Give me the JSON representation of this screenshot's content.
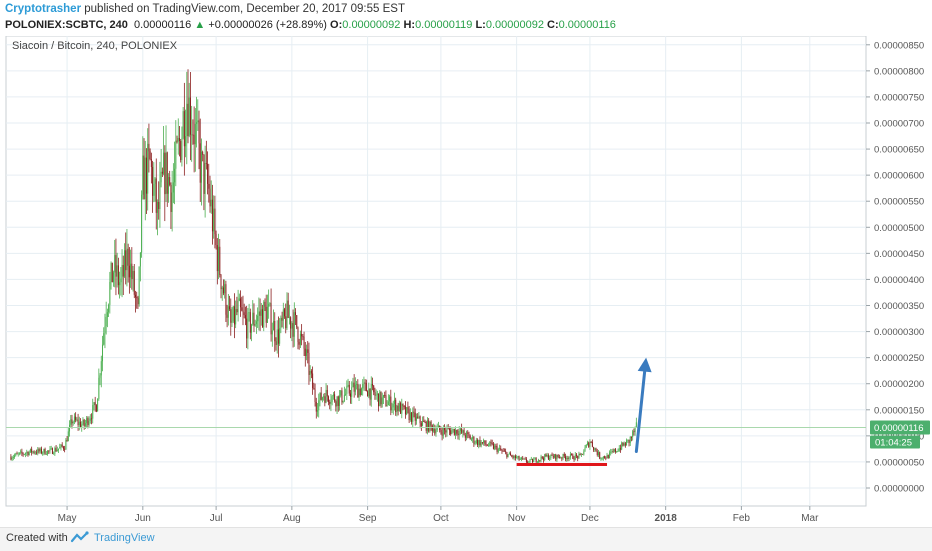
{
  "header": {
    "author": "Cryptotrasher",
    "published": " published on TradingView.com, December 20, 2017 09:55 EST",
    "symbol": "POLONIEX:SCBTC, 240",
    "last": "0.00000116",
    "change": "+0.00000026 (+28.89%)",
    "o_label": "O:",
    "o_value": "0.00000092",
    "h_label": "H:",
    "h_value": "0.00000119",
    "l_label": "L:",
    "l_value": "0.00000092",
    "c_label": "C:",
    "c_value": "0.00000116"
  },
  "chart_data": {
    "type": "candlestick",
    "title": "Siacoin / Bitcoin, 240, POLONIEX",
    "x_ticks": [
      "May",
      "Jun",
      "Jul",
      "Aug",
      "Sep",
      "Oct",
      "Nov",
      "Dec",
      "2018",
      "Feb",
      "Mar"
    ],
    "y_ticks": [
      "0.00000850",
      "0.00000800",
      "0.00000750",
      "0.00000700",
      "0.00000650",
      "0.00000600",
      "0.00000550",
      "0.00000500",
      "0.00000450",
      "0.00000400",
      "0.00000350",
      "0.00000300",
      "0.00000250",
      "0.00000200",
      "0.00000150",
      "0.00000100",
      "0.00000050",
      "0.00000000"
    ],
    "ylim": [
      0,
      8.8e-06
    ],
    "price_series": {
      "dates": [
        "2017-04-08",
        "2017-04-16",
        "2017-04-24",
        "2017-04-30",
        "2017-05-03",
        "2017-05-08",
        "2017-05-13",
        "2017-05-17",
        "2017-05-20",
        "2017-05-23",
        "2017-05-26",
        "2017-05-30",
        "2017-06-01",
        "2017-06-04",
        "2017-06-07",
        "2017-06-10",
        "2017-06-13",
        "2017-06-16",
        "2017-06-19",
        "2017-06-22",
        "2017-06-25",
        "2017-06-28",
        "2017-07-01",
        "2017-07-04",
        "2017-07-07",
        "2017-07-10",
        "2017-07-14",
        "2017-07-18",
        "2017-07-22",
        "2017-07-26",
        "2017-07-30",
        "2017-08-03",
        "2017-08-07",
        "2017-08-11",
        "2017-08-14",
        "2017-08-20",
        "2017-08-26",
        "2017-09-01",
        "2017-09-06",
        "2017-09-12",
        "2017-09-18",
        "2017-09-25",
        "2017-10-01",
        "2017-10-08",
        "2017-10-15",
        "2017-10-22",
        "2017-10-30",
        "2017-11-06",
        "2017-11-13",
        "2017-11-20",
        "2017-11-27",
        "2017-12-01",
        "2017-12-05",
        "2017-12-08",
        "2017-12-11",
        "2017-12-14",
        "2017-12-17",
        "2017-12-20"
      ],
      "close": [
        6e-07,
        7e-07,
        7e-07,
        8e-07,
        1.3e-06,
        1.2e-06,
        1.6e-06,
        3.5e-06,
        4.2e-06,
        3.9e-06,
        4.5e-06,
        3.3e-06,
        5.9e-06,
        6.2e-06,
        5.2e-06,
        6.1e-06,
        5.7e-06,
        6.6e-06,
        7.5e-06,
        6.9e-06,
        6.1e-06,
        5.7e-06,
        4.6e-06,
        3.8e-06,
        3.1e-06,
        3.4e-06,
        3.1e-06,
        3.3e-06,
        3.4e-06,
        2.9e-06,
        3.3e-06,
        3.1e-06,
        2.5e-06,
        1.6e-06,
        1.8e-06,
        1.7e-06,
        1.9e-06,
        1.9e-06,
        1.7e-06,
        1.6e-06,
        1.4e-06,
        1.2e-06,
        1.1e-06,
        1.1e-06,
        9e-07,
        8e-07,
        6e-07,
        5e-07,
        6e-07,
        6e-07,
        6e-07,
        9e-07,
        6e-07,
        6e-07,
        7e-07,
        8e-07,
        9e-07,
        1.16e-06
      ]
    },
    "support_line": {
      "y": 4.5e-07,
      "x_start": "2017-11-01",
      "x_end": "2017-12-08",
      "color": "#e0161b"
    },
    "projection_arrow": {
      "from": [
        "2017-12-20",
        7e-07
      ],
      "to": [
        "2017-12-24",
        2.5e-06
      ],
      "color": "#3a7bbf"
    },
    "last_price_label": "0.00000116",
    "countdown_label": "01:04:25",
    "colors": {
      "up": "#4caf50",
      "down": "#8b1e1e",
      "grid": "#e6eef3",
      "axis": "#9aa3a8",
      "price_line": "#a9d8ad",
      "price_tag": "#4caf6d"
    }
  },
  "footer": {
    "created_with": "Created with",
    "brand": "TradingView"
  }
}
